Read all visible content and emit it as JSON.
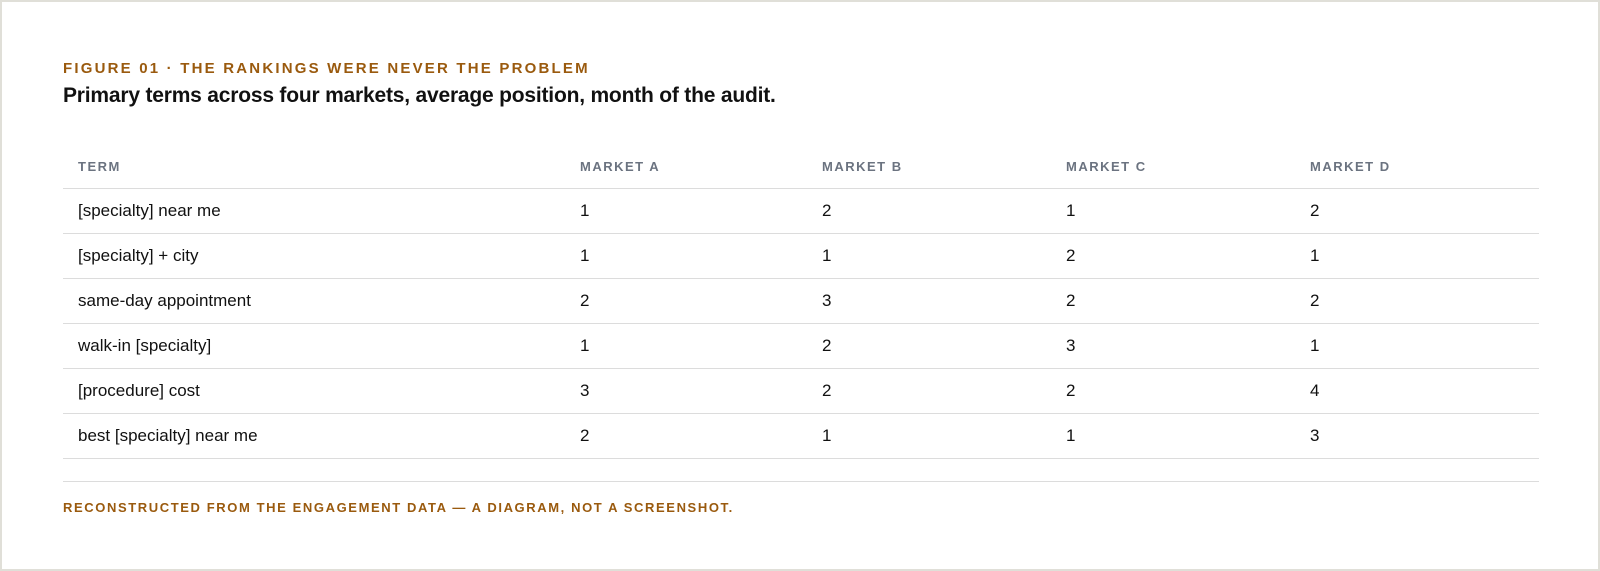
{
  "figure": {
    "eyebrow": "FIGURE 01 · THE RANKINGS WERE NEVER THE PROBLEM",
    "headline": "Primary terms across four markets, average position, month of the audit.",
    "footnote": "RECONSTRUCTED FROM THE ENGAGEMENT DATA — A DIAGRAM, NOT A SCREENSHOT."
  },
  "table": {
    "headers": [
      "TERM",
      "MARKET A",
      "MARKET B",
      "MARKET C",
      "MARKET D"
    ],
    "rows": [
      [
        "[specialty] near me",
        "1",
        "2",
        "1",
        "2"
      ],
      [
        "[specialty] + city",
        "1",
        "1",
        "2",
        "1"
      ],
      [
        "same-day appointment",
        "2",
        "3",
        "2",
        "2"
      ],
      [
        "walk-in [specialty]",
        "1",
        "2",
        "3",
        "1"
      ],
      [
        "[procedure] cost",
        "3",
        "2",
        "2",
        "4"
      ],
      [
        "best [specialty] near me",
        "2",
        "1",
        "1",
        "3"
      ]
    ]
  },
  "colors": {
    "accent": "#9a5a0e",
    "header_text": "#6b7380",
    "body_text": "#111111",
    "rule": "#dcdcdc",
    "frame_border": "#e0dfd8"
  }
}
